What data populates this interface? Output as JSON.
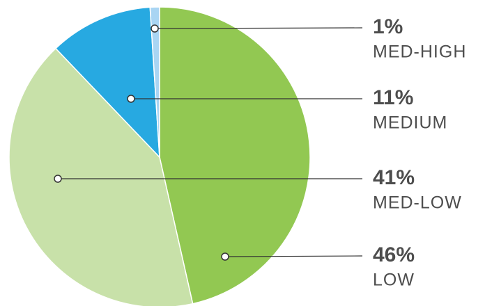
{
  "chart_data": {
    "type": "pie",
    "categories": [
      "LOW",
      "MED-LOW",
      "MEDIUM",
      "MED-HIGH"
    ],
    "values": [
      46,
      41,
      11,
      1
    ],
    "value_labels": [
      "46%",
      "41%",
      "11%",
      "1%"
    ],
    "colors": [
      "#92c852",
      "#c8e1a9",
      "#27a9e1",
      "#a9d5f3"
    ]
  }
}
